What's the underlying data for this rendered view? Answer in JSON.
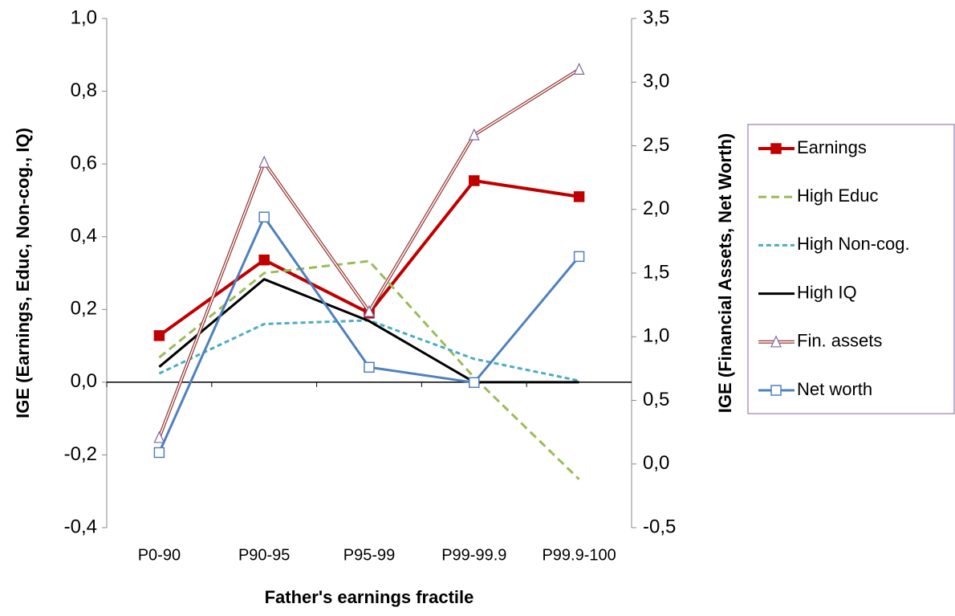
{
  "chart_data": {
    "type": "line",
    "x_label": "Father's earnings fractile",
    "y_label": "IGE (Earnings, Educ, Non-cog., IQ)",
    "y2_label": "IGE (Financial Assets, Net Worth)",
    "categories": [
      "P0-90",
      "P90-95",
      "P95-99",
      "P99-99.9",
      "P99.9-100"
    ],
    "ylim": [
      -0.4,
      1.0
    ],
    "yticks": [
      {
        "value": -0.4,
        "label": "-0,4"
      },
      {
        "value": -0.2,
        "label": "-0,2"
      },
      {
        "value": 0,
        "label": "0,0"
      },
      {
        "value": 0.2,
        "label": "0,2"
      },
      {
        "value": 0.4,
        "label": "0,4"
      },
      {
        "value": 0.6,
        "label": "0,6"
      },
      {
        "value": 0.8,
        "label": "0,8"
      },
      {
        "value": 1.0,
        "label": "1,0"
      }
    ],
    "y2lim": [
      -0.5,
      3.5
    ],
    "y2ticks": [
      {
        "value": -0.5,
        "label": "-0,5"
      },
      {
        "value": 0,
        "label": "0,0"
      },
      {
        "value": 0.5,
        "label": "0,5"
      },
      {
        "value": 1.0,
        "label": "1,0"
      },
      {
        "value": 1.5,
        "label": "1,5"
      },
      {
        "value": 2.0,
        "label": "2,0"
      },
      {
        "value": 2.5,
        "label": "2,5"
      },
      {
        "value": 3.0,
        "label": "3,0"
      },
      {
        "value": 3.5,
        "label": "3,5"
      }
    ],
    "legend": "right",
    "series": [
      {
        "name": "Earnings",
        "color": "#c00000",
        "width": 4,
        "marker": "square",
        "marker_fill": "#c00000",
        "values": [
          0.128,
          0.336,
          0.19,
          0.554,
          0.51
        ]
      },
      {
        "name": "High Educ",
        "color": "#9bbb59",
        "width": 3,
        "dash": "10 6",
        "values": [
          0.068,
          0.3,
          0.333,
          0.013,
          -0.267
        ]
      },
      {
        "name": "High Non-cog.",
        "color": "#4bacc6",
        "width": 3,
        "dash": "6 4",
        "values": [
          0.024,
          0.16,
          0.17,
          0.064,
          0.004
        ]
      },
      {
        "name": "High IQ",
        "color": "#000000",
        "width": 3,
        "values": [
          0.042,
          0.283,
          0.168,
          0.0,
          0.0
        ]
      },
      {
        "name": "Fin. assets",
        "color": "#953735",
        "width": 4,
        "style": "double",
        "marker": "triangle",
        "marker_fill": "#ffffff",
        "marker_color": "#8064a2",
        "axis": "y2",
        "values": [
          0.207,
          2.37,
          1.197,
          2.585,
          3.1
        ]
      },
      {
        "name": "Net worth",
        "color": "#4f81bd",
        "width": 3,
        "marker": "square",
        "marker_fill": "#ffffff",
        "axis": "y2",
        "values": [
          0.09,
          1.94,
          0.76,
          0.64,
          1.63
        ]
      }
    ]
  }
}
